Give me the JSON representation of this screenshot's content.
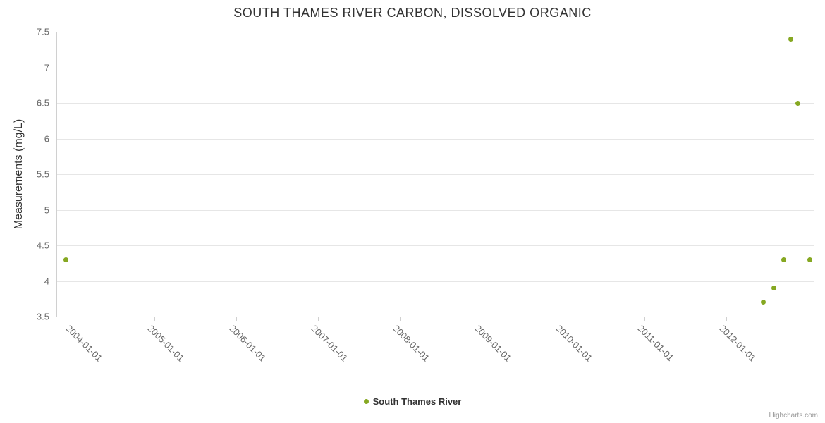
{
  "chart_data": {
    "type": "scatter",
    "title": "SOUTH THAMES RIVER CARBON, DISSOLVED ORGANIC",
    "xlabel": "",
    "ylabel": "Measurements (mg/L)",
    "ylim": [
      3.5,
      7.5
    ],
    "y_ticks": [
      3.5,
      4,
      4.5,
      5,
      5.5,
      6,
      6.5,
      7,
      7.5
    ],
    "x_ticks": [
      "2004-01-01",
      "2005-01-01",
      "2006-01-01",
      "2007-01-01",
      "2008-01-01",
      "2009-01-01",
      "2010-01-01",
      "2011-01-01",
      "2012-01-01"
    ],
    "xlim_dates": [
      "2003-10-20",
      "2013-01-29"
    ],
    "grid": true,
    "legend_position": "bottom-center",
    "series": [
      {
        "name": "South Thames River",
        "color": "#86a822",
        "points": [
          {
            "x": "2003-12-01",
            "y": 4.3
          },
          {
            "x": "2012-06-15",
            "y": 3.7
          },
          {
            "x": "2012-08-01",
            "y": 3.9
          },
          {
            "x": "2012-09-15",
            "y": 4.3
          },
          {
            "x": "2012-10-15",
            "y": 7.4
          },
          {
            "x": "2012-11-15",
            "y": 6.5
          },
          {
            "x": "2013-01-10",
            "y": 4.3
          }
        ]
      }
    ],
    "credit": "Highcharts.com"
  }
}
